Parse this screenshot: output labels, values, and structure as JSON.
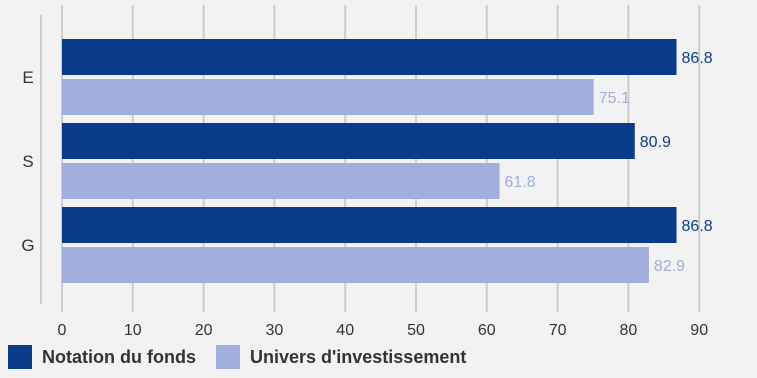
{
  "chart_data": {
    "type": "bar",
    "orientation": "horizontal",
    "categories": [
      "E",
      "S",
      "G"
    ],
    "series": [
      {
        "name": "Notation du fonds",
        "values": [
          86.8,
          80.9,
          86.8
        ],
        "color": "#0b3c8c",
        "label_color": "#0b3c8c"
      },
      {
        "name": "Univers d'investissement",
        "values": [
          75.1,
          61.8,
          82.9
        ],
        "color": "#a2aedb",
        "label_color": "#a2aedb"
      }
    ],
    "xlim": [
      0,
      90
    ],
    "xticks": [
      "0",
      "10",
      "20",
      "30",
      "40",
      "50",
      "60",
      "70",
      "80",
      "90"
    ],
    "grid": true,
    "legend_position": "bottom-left"
  }
}
